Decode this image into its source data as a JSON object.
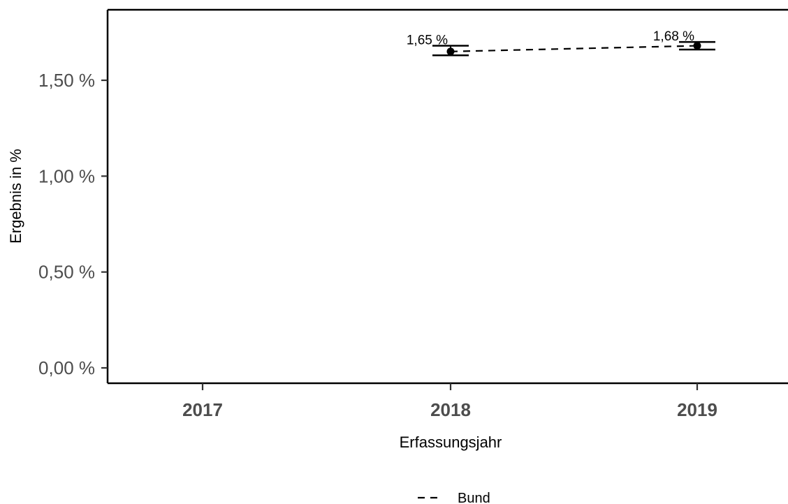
{
  "chart_data": {
    "type": "line",
    "x": [
      "2017",
      "2018",
      "2019"
    ],
    "xlabel": "Erfassungsjahr",
    "ylabel": "Ergebnis in %",
    "ylim": [
      0,
      0.0185
    ],
    "y_ticks": [
      0.0,
      0.005,
      0.01,
      0.015
    ],
    "y_tick_labels": [
      "0,00 %",
      "0,50 %",
      "1,00 %",
      "1,50 %"
    ],
    "series": [
      {
        "name": "Bund",
        "line_style": "dashed",
        "color": "#000000",
        "points": [
          {
            "x": "2018",
            "y": 0.0165,
            "ci_low": 0.0163,
            "ci_high": 0.0168,
            "label": "1,65 %"
          },
          {
            "x": "2019",
            "y": 0.0168,
            "ci_low": 0.0166,
            "ci_high": 0.017,
            "label": "1,68 %"
          }
        ]
      }
    ],
    "grid": false,
    "legend": {
      "position": "bottom",
      "entries": [
        "Bund"
      ]
    }
  }
}
